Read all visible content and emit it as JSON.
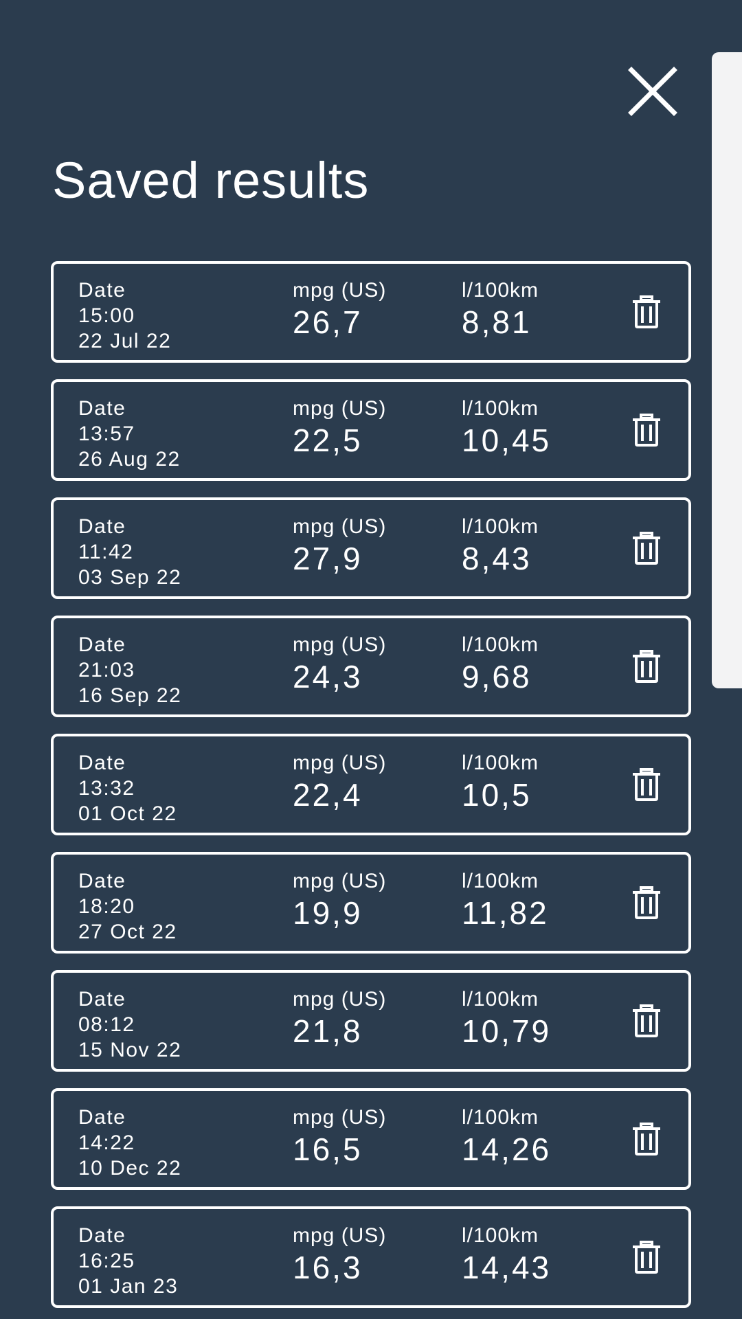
{
  "header": {
    "title": "Saved results",
    "close_icon": "close-icon"
  },
  "labels": {
    "date": "Date",
    "mpg": "mpg (US)",
    "l100km": "l/100km"
  },
  "results": [
    {
      "time": "15:00",
      "date": "22 Jul 22",
      "mpg": "26,7",
      "l100km": "8,81"
    },
    {
      "time": "13:57",
      "date": "26 Aug 22",
      "mpg": "22,5",
      "l100km": "10,45"
    },
    {
      "time": "11:42",
      "date": "03 Sep 22",
      "mpg": "27,9",
      "l100km": "8,43"
    },
    {
      "time": "21:03",
      "date": "16 Sep 22",
      "mpg": "24,3",
      "l100km": "9,68"
    },
    {
      "time": "13:32",
      "date": "01 Oct 22",
      "mpg": "22,4",
      "l100km": "10,5"
    },
    {
      "time": "18:20",
      "date": "27 Oct 22",
      "mpg": "19,9",
      "l100km": "11,82"
    },
    {
      "time": "08:12",
      "date": "15 Nov 22",
      "mpg": "21,8",
      "l100km": "10,79"
    },
    {
      "time": "14:22",
      "date": "10 Dec 22",
      "mpg": "16,5",
      "l100km": "14,26"
    },
    {
      "time": "16:25",
      "date": "01 Jan 23",
      "mpg": "16,3",
      "l100km": "14,43"
    }
  ],
  "icons": {
    "delete": "trash-icon"
  },
  "colors": {
    "background": "#2b3c4e",
    "foreground": "#ffffff",
    "scrollbar": "#f3f3f4"
  }
}
